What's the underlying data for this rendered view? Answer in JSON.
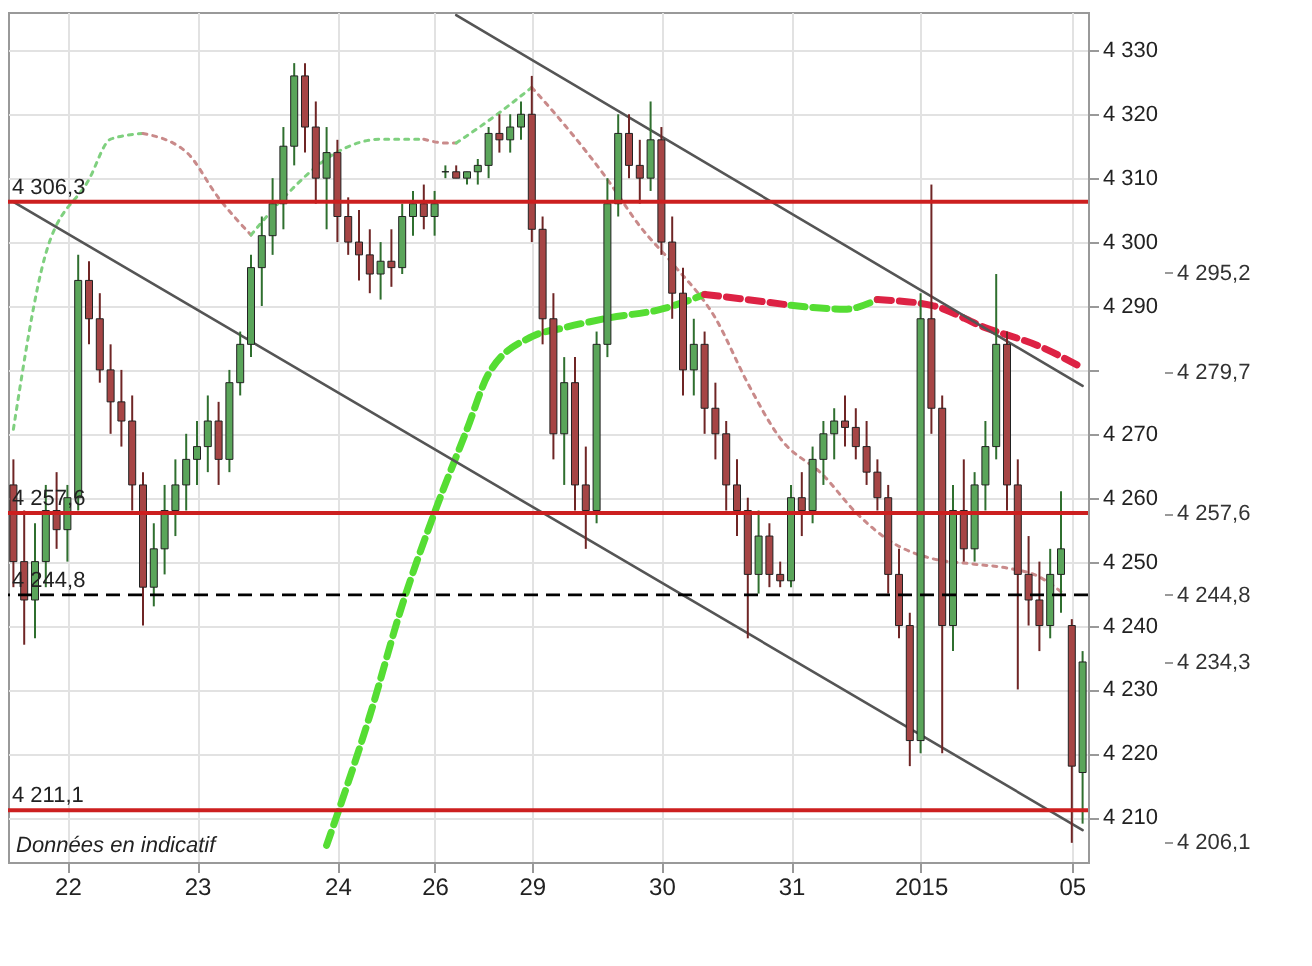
{
  "chart_data": {
    "type": "candlestick",
    "categories": [
      null,
      null,
      null,
      null,
      null,
      "22",
      null,
      null,
      null,
      null,
      null,
      null,
      null,
      null,
      null,
      null,
      null,
      "23",
      null,
      null,
      null,
      null,
      null,
      null,
      null,
      null,
      null,
      null,
      null,
      null,
      "24",
      null,
      null,
      null,
      null,
      null,
      null,
      null,
      null,
      "26",
      null,
      null,
      null,
      null,
      null,
      null,
      null,
      null,
      "29",
      null,
      null,
      null,
      null,
      null,
      null,
      null,
      null,
      null,
      null,
      null,
      "30",
      null,
      null,
      null,
      null,
      null,
      null,
      null,
      null,
      null,
      null,
      null,
      "31",
      null,
      null,
      null,
      null,
      null,
      null,
      null,
      null,
      null,
      null,
      null,
      "2015",
      null,
      null,
      null,
      null,
      null,
      null,
      null,
      null,
      null,
      null,
      null,
      null,
      null,
      "05",
      null
    ],
    "ohlc": [
      [
        4262,
        4266,
        4246,
        4250
      ],
      [
        4250,
        4258,
        4237,
        4244
      ],
      [
        4244,
        4256,
        4238,
        4250
      ],
      [
        4250,
        4262,
        4246,
        4258
      ],
      [
        4258,
        4264,
        4252,
        4255
      ],
      [
        4255,
        4262,
        4250,
        4260
      ],
      [
        4260,
        4298,
        4258,
        4294
      ],
      [
        4294,
        4297,
        4284,
        4288
      ],
      [
        4288,
        4292,
        4278,
        4280
      ],
      [
        4280,
        4284,
        4270,
        4275
      ],
      [
        4275,
        4280,
        4268,
        4272
      ],
      [
        4272,
        4276,
        4258,
        4262
      ],
      [
        4262,
        4264,
        4240,
        4246
      ],
      [
        4246,
        4256,
        4243,
        4252
      ],
      [
        4252,
        4262,
        4248,
        4258
      ],
      [
        4258,
        4266,
        4254,
        4262
      ],
      [
        4262,
        4270,
        4258,
        4266
      ],
      [
        4266,
        4272,
        4262,
        4268
      ],
      [
        4268,
        4276,
        4264,
        4272
      ],
      [
        4272,
        4275,
        4262,
        4266
      ],
      [
        4266,
        4280,
        4264,
        4278
      ],
      [
        4278,
        4286,
        4276,
        4284
      ],
      [
        4284,
        4298,
        4282,
        4296
      ],
      [
        4296,
        4304,
        4290,
        4301
      ],
      [
        4301,
        4310,
        4298,
        4306
      ],
      [
        4306,
        4318,
        4302,
        4315
      ],
      [
        4315,
        4328,
        4312,
        4326
      ],
      [
        4326,
        4328,
        4314,
        4318
      ],
      [
        4318,
        4322,
        4306,
        4310
      ],
      [
        4310,
        4318,
        4302,
        4314
      ],
      [
        4314,
        4316,
        4300,
        4304
      ],
      [
        4304,
        4307,
        4298,
        4300
      ],
      [
        4300,
        4305,
        4294,
        4298
      ],
      [
        4298,
        4302,
        4292,
        4295
      ],
      [
        4295,
        4300,
        4291,
        4297
      ],
      [
        4297,
        4302,
        4293,
        4296
      ],
      [
        4296,
        4306,
        4295,
        4304
      ],
      [
        4304,
        4308,
        4301,
        4306
      ],
      [
        4306,
        4309,
        4302,
        4304
      ],
      [
        4304,
        4308,
        4301,
        4306
      ],
      [
        4311,
        4312,
        4310,
        4311
      ],
      [
        4311,
        4312,
        4310,
        4310
      ],
      [
        4310,
        4311,
        4309,
        4311
      ],
      [
        4311,
        4313,
        4309,
        4312
      ],
      [
        4312,
        4318,
        4310,
        4317
      ],
      [
        4317,
        4320,
        4314,
        4316
      ],
      [
        4316,
        4320,
        4314,
        4318
      ],
      [
        4318,
        4322,
        4316,
        4320
      ],
      [
        4320,
        4326,
        4300,
        4302
      ],
      [
        4302,
        4304,
        4284,
        4288
      ],
      [
        4288,
        4292,
        4266,
        4270
      ],
      [
        4270,
        4282,
        4262,
        4278
      ],
      [
        4278,
        4282,
        4258,
        4262
      ],
      [
        4262,
        4268,
        4252,
        4258
      ],
      [
        4258,
        4286,
        4256,
        4284
      ],
      [
        4284,
        4310,
        4282,
        4306
      ],
      [
        4306,
        4320,
        4304,
        4317
      ],
      [
        4317,
        4320,
        4310,
        4312
      ],
      [
        4312,
        4316,
        4306,
        4310
      ],
      [
        4310,
        4322,
        4308,
        4316
      ],
      [
        4316,
        4318,
        4298,
        4300
      ],
      [
        4300,
        4304,
        4288,
        4292
      ],
      [
        4292,
        4296,
        4276,
        4280
      ],
      [
        4280,
        4288,
        4276,
        4284
      ],
      [
        4284,
        4286,
        4270,
        4274
      ],
      [
        4274,
        4278,
        4266,
        4270
      ],
      [
        4270,
        4272,
        4258,
        4262
      ],
      [
        4262,
        4266,
        4254,
        4258
      ],
      [
        4258,
        4260,
        4238,
        4248
      ],
      [
        4248,
        4258,
        4245,
        4254
      ],
      [
        4254,
        4256,
        4246,
        4248
      ],
      [
        4248,
        4250,
        4246,
        4247
      ],
      [
        4247,
        4262,
        4246,
        4260
      ],
      [
        4260,
        4264,
        4254,
        4258
      ],
      [
        4258,
        4268,
        4256,
        4266
      ],
      [
        4266,
        4272,
        4262,
        4270
      ],
      [
        4270,
        4274,
        4266,
        4272
      ],
      [
        4272,
        4276,
        4268,
        4271
      ],
      [
        4271,
        4274,
        4266,
        4268
      ],
      [
        4268,
        4272,
        4262,
        4264
      ],
      [
        4264,
        4266,
        4258,
        4260
      ],
      [
        4260,
        4262,
        4245,
        4248
      ],
      [
        4248,
        4252,
        4238,
        4240
      ],
      [
        4240,
        4242,
        4218,
        4222
      ],
      [
        4222,
        4292,
        4220,
        4288
      ],
      [
        4288,
        4309,
        4270,
        4274
      ],
      [
        4274,
        4276,
        4220,
        4240
      ],
      [
        4240,
        4262,
        4236,
        4258
      ],
      [
        4258,
        4266,
        4250,
        4252
      ],
      [
        4252,
        4264,
        4250,
        4262
      ],
      [
        4262,
        4272,
        4258,
        4268
      ],
      [
        4268,
        4295,
        4266,
        4284
      ],
      [
        4284,
        4286,
        4258,
        4262
      ],
      [
        4262,
        4266,
        4230,
        4248
      ],
      [
        4248,
        4254,
        4240,
        4244
      ],
      [
        4244,
        4250,
        4236,
        4240
      ],
      [
        4240,
        4252,
        4238,
        4248
      ],
      [
        4248,
        4261,
        4242,
        4252
      ],
      [
        4240,
        4241,
        4206,
        4218
      ],
      [
        4217,
        4236,
        4209,
        4234.3
      ]
    ],
    "series": [
      {
        "type": "line",
        "color": "#7fd07f",
        "line_style": "dotted",
        "values": [
          4270.7,
          null,
          null,
          4298.2,
          null,
          null,
          null,
          4309.8,
          null,
          4316.1,
          null,
          null,
          4317.0,
          null,
          null,
          null,
          null,
          null,
          null,
          null,
          null,
          null,
          null,
          null,
          null,
          null,
          null,
          null,
          null,
          null,
          null,
          null,
          null,
          null,
          null,
          null,
          null,
          null,
          null,
          null,
          null,
          null,
          null,
          null,
          null,
          null,
          null,
          null,
          null,
          null,
          null,
          null,
          null,
          null,
          null,
          null,
          null,
          null,
          null,
          null,
          null,
          null,
          null,
          null,
          null,
          null,
          null,
          null,
          null,
          null,
          null,
          null,
          null,
          null,
          null,
          null,
          null,
          null,
          null,
          null,
          null,
          null,
          null,
          null,
          null,
          null,
          null,
          null,
          null,
          null,
          null,
          null,
          null,
          null,
          null,
          null,
          null,
          null,
          null,
          null
        ]
      },
      {
        "type": "line",
        "color": "#c98a8a",
        "line_style": "dotted",
        "values": [
          null,
          null,
          null,
          null,
          null,
          null,
          null,
          null,
          null,
          null,
          null,
          null,
          4317.0,
          null,
          null,
          null,
          4314.1,
          null,
          null,
          4306.9,
          null,
          null,
          4301.1,
          null,
          null,
          null,
          null,
          null,
          null,
          null,
          null,
          null,
          null,
          null,
          null,
          null,
          null,
          null,
          null,
          null,
          null,
          null,
          null,
          null,
          null,
          null,
          null,
          null,
          null,
          null,
          null,
          null,
          null,
          null,
          null,
          null,
          null,
          null,
          null,
          null,
          null,
          null,
          null,
          null,
          null,
          null,
          null,
          null,
          null,
          null,
          null,
          null,
          null,
          null,
          null,
          null,
          null,
          null,
          null,
          null,
          null,
          null,
          null,
          null,
          null,
          null,
          null,
          null,
          null,
          null,
          null,
          null,
          null,
          null,
          null,
          null,
          null,
          null,
          null,
          null
        ]
      },
      {
        "type": "line",
        "color": "#7fd07f",
        "line_style": "dotted",
        "values": [
          null,
          null,
          null,
          null,
          null,
          null,
          null,
          null,
          null,
          null,
          null,
          null,
          null,
          null,
          null,
          null,
          null,
          null,
          null,
          null,
          null,
          null,
          4301.1,
          null,
          null,
          4306.9,
          null,
          null,
          null,
          null,
          4314.1,
          null,
          null,
          null,
          4316.1,
          null,
          null,
          null,
          4316.1,
          null,
          null,
          null,
          null,
          null,
          null,
          null,
          null,
          null,
          null,
          null,
          null,
          null,
          null,
          null,
          null,
          null,
          null,
          null,
          null,
          null,
          null,
          null,
          null,
          null,
          null,
          null,
          null,
          null,
          null,
          null,
          null,
          null,
          null,
          null,
          null,
          null,
          null,
          null,
          null,
          null,
          null,
          null,
          null,
          null,
          null,
          null,
          null,
          null,
          null,
          null,
          null,
          null,
          null,
          null,
          null,
          null,
          null,
          null,
          null,
          null
        ]
      },
      {
        "type": "line",
        "color": "#c98a8a",
        "line_style": "dotted",
        "values": [
          null,
          null,
          null,
          null,
          null,
          null,
          null,
          null,
          null,
          null,
          null,
          null,
          null,
          null,
          null,
          null,
          null,
          null,
          null,
          null,
          null,
          null,
          null,
          null,
          null,
          null,
          null,
          null,
          null,
          null,
          null,
          null,
          null,
          null,
          null,
          null,
          null,
          null,
          4316.1,
          null,
          4315.5,
          4315.5,
          null,
          null,
          null,
          null,
          null,
          null,
          null,
          null,
          null,
          null,
          null,
          null,
          null,
          null,
          null,
          null,
          null,
          null,
          null,
          null,
          null,
          null,
          null,
          null,
          null,
          null,
          null,
          null,
          null,
          null,
          null,
          null,
          null,
          null,
          null,
          null,
          null,
          null,
          null,
          null,
          null,
          null,
          null,
          null,
          null,
          null,
          null,
          null,
          null,
          null,
          null,
          null,
          null,
          null,
          null,
          null,
          null,
          null
        ]
      },
      {
        "type": "line",
        "color": "#7fd07f",
        "line_style": "dotted",
        "values": [
          null,
          null,
          null,
          null,
          null,
          null,
          null,
          null,
          null,
          null,
          null,
          null,
          null,
          null,
          null,
          null,
          null,
          null,
          null,
          null,
          null,
          null,
          null,
          null,
          null,
          null,
          null,
          null,
          null,
          null,
          null,
          null,
          null,
          null,
          null,
          null,
          null,
          null,
          null,
          null,
          null,
          4315.5,
          null,
          null,
          4319.0,
          null,
          null,
          null,
          4324.2,
          null,
          null,
          null,
          null,
          null,
          null,
          null,
          null,
          null,
          null,
          null,
          null,
          null,
          null,
          null,
          null,
          null,
          null,
          null,
          null,
          null,
          null,
          null,
          null,
          null,
          null,
          null,
          null,
          null,
          null,
          null,
          null,
          null,
          null,
          null,
          null,
          null,
          null,
          null,
          null,
          null,
          null,
          null,
          null,
          null,
          null,
          null,
          null,
          null,
          null,
          null
        ]
      },
      {
        "type": "line",
        "color": "#c98a8a",
        "line_style": "dotted",
        "values": [
          null,
          null,
          null,
          null,
          null,
          null,
          null,
          null,
          null,
          null,
          null,
          null,
          null,
          null,
          null,
          null,
          null,
          null,
          null,
          null,
          null,
          null,
          null,
          null,
          null,
          null,
          null,
          null,
          null,
          null,
          null,
          null,
          null,
          null,
          null,
          null,
          null,
          null,
          null,
          null,
          null,
          null,
          null,
          null,
          null,
          null,
          null,
          null,
          4324.2,
          null,
          null,
          4318.4,
          null,
          null,
          null,
          4309.8,
          null,
          null,
          4302.5,
          null,
          null,
          4296.7,
          null,
          null,
          null,
          4288.1,
          null,
          null,
          4277.9,
          null,
          null,
          4269.3,
          null,
          null,
          null,
          4263.5,
          null,
          null,
          4257.7,
          null,
          null,
          4253.4,
          null,
          null,
          null,
          4250.5,
          null,
          null,
          null,
          4249.6,
          null,
          null,
          4249.0,
          null,
          null,
          4247.6,
          null,
          4245.3,
          null,
          null
        ]
      },
      {
        "type": "line",
        "color": "#55dd33",
        "line_style": "dashed",
        "values": [
          null,
          null,
          null,
          null,
          null,
          null,
          null,
          null,
          null,
          null,
          null,
          null,
          null,
          null,
          null,
          null,
          null,
          null,
          null,
          null,
          null,
          null,
          null,
          null,
          null,
          null,
          null,
          null,
          null,
          4205.6,
          null,
          null,
          null,
          4225.9,
          null,
          null,
          4243.2,
          null,
          null,
          4257.7,
          null,
          null,
          4270.7,
          null,
          4279.4,
          null,
          null,
          null,
          4285.2,
          null,
          null,
          4286.6,
          null,
          null,
          null,
          4288.1,
          null,
          null,
          null,
          null,
          4289.5,
          null,
          null,
          null,
          4291.8,
          null,
          null,
          null,
          null,
          null,
          null,
          null,
          null,
          null,
          null,
          null,
          null,
          null,
          null,
          null,
          null,
          null,
          null,
          null,
          null,
          null,
          null,
          null,
          null,
          null,
          null,
          null,
          null,
          null,
          null,
          null,
          null,
          null,
          null,
          null
        ]
      },
      {
        "type": "line",
        "color": "#dd2244",
        "line_style": "dashed",
        "values": [
          null,
          null,
          null,
          null,
          null,
          null,
          null,
          null,
          null,
          null,
          null,
          null,
          null,
          null,
          null,
          null,
          null,
          null,
          null,
          null,
          null,
          null,
          null,
          null,
          null,
          null,
          null,
          null,
          null,
          null,
          null,
          null,
          null,
          null,
          null,
          null,
          null,
          null,
          null,
          null,
          null,
          null,
          null,
          null,
          null,
          null,
          null,
          null,
          null,
          null,
          null,
          null,
          null,
          null,
          null,
          null,
          null,
          null,
          null,
          null,
          null,
          null,
          null,
          null,
          4291.8,
          null,
          null,
          null,
          4291.0,
          null,
          null,
          null,
          4290.1,
          null,
          null,
          null,
          null,
          null,
          null,
          null,
          null,
          null,
          null,
          null,
          null,
          null,
          null,
          null,
          null,
          null,
          null,
          null,
          null,
          null,
          null,
          null,
          null,
          null,
          null,
          null
        ]
      },
      {
        "type": "line",
        "color": "#55dd33",
        "line_style": "dashed",
        "values": [
          null,
          null,
          null,
          null,
          null,
          null,
          null,
          null,
          null,
          null,
          null,
          null,
          null,
          null,
          null,
          null,
          null,
          null,
          null,
          null,
          null,
          null,
          null,
          null,
          null,
          null,
          null,
          null,
          null,
          null,
          null,
          null,
          null,
          null,
          null,
          null,
          null,
          null,
          null,
          null,
          null,
          null,
          null,
          null,
          null,
          null,
          null,
          null,
          null,
          null,
          null,
          null,
          null,
          null,
          null,
          null,
          null,
          null,
          null,
          null,
          null,
          null,
          null,
          null,
          null,
          null,
          null,
          null,
          null,
          null,
          null,
          null,
          4290.1,
          null,
          null,
          null,
          null,
          4289.5,
          null,
          null,
          4291.0,
          null,
          null,
          null,
          null,
          null,
          null,
          null,
          null,
          null,
          null,
          null,
          null,
          null,
          null,
          null,
          null,
          null,
          null,
          null
        ]
      },
      {
        "type": "line",
        "color": "#dd2244",
        "line_style": "dashed",
        "values": [
          null,
          null,
          null,
          null,
          null,
          null,
          null,
          null,
          null,
          null,
          null,
          null,
          null,
          null,
          null,
          null,
          null,
          null,
          null,
          null,
          null,
          null,
          null,
          null,
          null,
          null,
          null,
          null,
          null,
          null,
          null,
          null,
          null,
          null,
          null,
          null,
          null,
          null,
          null,
          null,
          null,
          null,
          null,
          null,
          null,
          null,
          null,
          null,
          null,
          null,
          null,
          null,
          null,
          null,
          null,
          null,
          null,
          null,
          null,
          null,
          null,
          null,
          null,
          null,
          null,
          null,
          null,
          null,
          null,
          null,
          null,
          null,
          null,
          null,
          null,
          null,
          null,
          null,
          null,
          null,
          4291.0,
          null,
          null,
          null,
          null,
          4290.1,
          null,
          null,
          null,
          null,
          4286.6,
          null,
          null,
          null,
          null,
          4283.7,
          null,
          null,
          null,
          4280.3
        ]
      },
      {
        "type": "line",
        "color": "#555555",
        "line_style": "solid",
        "values": [
          null,
          null,
          null,
          null,
          null,
          null,
          null,
          null,
          null,
          null,
          null,
          null,
          null,
          null,
          null,
          null,
          null,
          null,
          null,
          null,
          null,
          null,
          null,
          null,
          null,
          null,
          null,
          null,
          null,
          null,
          null,
          null,
          null,
          null,
          null,
          null,
          null,
          null,
          null,
          null,
          null,
          4335.5,
          null,
          null,
          null,
          null,
          null,
          null,
          null,
          null,
          null,
          null,
          null,
          null,
          null,
          null,
          null,
          null,
          null,
          null,
          null,
          null,
          null,
          null,
          null,
          null,
          null,
          null,
          null,
          null,
          null,
          null,
          null,
          null,
          null,
          null,
          null,
          null,
          null,
          null,
          null,
          null,
          null,
          null,
          null,
          null,
          null,
          null,
          null,
          null,
          null,
          null,
          null,
          null,
          null,
          null,
          null,
          null,
          null,
          4277.5
        ]
      },
      {
        "type": "line",
        "color": "#555555",
        "line_style": "solid",
        "values": [
          4306.3,
          null,
          null,
          null,
          null,
          null,
          null,
          null,
          null,
          null,
          null,
          null,
          null,
          null,
          null,
          null,
          null,
          null,
          null,
          null,
          null,
          null,
          null,
          null,
          null,
          null,
          null,
          null,
          null,
          null,
          null,
          null,
          null,
          null,
          null,
          null,
          null,
          null,
          null,
          null,
          null,
          null,
          null,
          null,
          null,
          null,
          null,
          null,
          null,
          null,
          null,
          null,
          null,
          null,
          null,
          null,
          null,
          null,
          null,
          null,
          null,
          null,
          null,
          null,
          null,
          null,
          null,
          null,
          null,
          null,
          null,
          null,
          null,
          null,
          null,
          null,
          null,
          null,
          null,
          null,
          null,
          null,
          null,
          null,
          null,
          null,
          null,
          null,
          null,
          null,
          null,
          null,
          null,
          null,
          null,
          null,
          null,
          null,
          null,
          4208.0
        ]
      }
    ],
    "ylim": [
      4203,
      4336
    ],
    "yticks": [
      {
        "value": 4210,
        "label": "4 210"
      },
      {
        "value": 4220,
        "label": "4 220"
      },
      {
        "value": 4230,
        "label": "4 230"
      },
      {
        "value": 4240,
        "label": "4 240"
      },
      {
        "value": 4250,
        "label": "4 250"
      },
      {
        "value": 4260,
        "label": "4 260"
      },
      {
        "value": 4270,
        "label": "4 270"
      },
      {
        "value": 4280,
        "label": null
      },
      {
        "value": 4290,
        "label": "4 290"
      },
      {
        "value": 4300,
        "label": "4 300"
      },
      {
        "value": 4310,
        "label": "4 310"
      },
      {
        "value": 4320,
        "label": "4 320"
      },
      {
        "value": 4330,
        "label": "4 330"
      }
    ],
    "ref_lines": [
      {
        "axis": "y",
        "value": 4306.3,
        "label": "4 306,3",
        "color": "#cc1f1f",
        "line_style": "solid"
      },
      {
        "axis": "y",
        "value": 4257.6,
        "label": "4 257,6",
        "color": "#cc1f1f",
        "line_style": "solid"
      },
      {
        "axis": "y",
        "value": 4244.8,
        "label": "4 244,8",
        "color": "#000000",
        "line_style": "dashed"
      },
      {
        "axis": "y",
        "value": 4211.1,
        "label": "4 211,1",
        "color": "#cc1f1f",
        "line_style": "solid"
      }
    ],
    "annotations": [
      "Données en indicatif"
    ],
    "y2lim": [
      4203,
      4336
    ],
    "y2ticks": [
      {
        "value": 4295.2,
        "label": "4 295,2"
      },
      {
        "value": 4279.7,
        "label": "4 279,7"
      },
      {
        "value": 4257.6,
        "label": "4 257,6"
      },
      {
        "value": 4244.8,
        "label": "4 244,8"
      },
      {
        "value": 4234.3,
        "label": "4 234,3"
      },
      {
        "value": 4206.1,
        "label": "4 206,1"
      }
    ],
    "grid": true
  }
}
